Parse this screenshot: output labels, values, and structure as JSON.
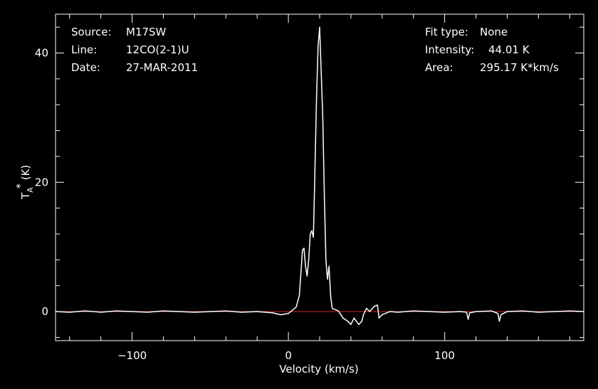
{
  "header": {
    "source_label": "Source:",
    "source_value": "M17SW",
    "line_label": "Line:",
    "line_value": "12CO(2-1)U",
    "date_label": "Date:",
    "date_value": "27-MAR-2011",
    "fit_type_label": "Fit type:",
    "fit_type_value": "None",
    "intensity_label": "Intensity:",
    "intensity_value": "44.01 K",
    "area_label": "Area:",
    "area_value": "295.17 K*km/s"
  },
  "chart_data": {
    "type": "line",
    "xlabel": "Velocity (km/s)",
    "ylabel": "T_A* (K)",
    "ylabel_main": "T",
    "ylabel_sub": "A",
    "ylabel_sup": "*",
    "ylabel_unit": "(K)",
    "xlim": [
      -149,
      189
    ],
    "ylim": [
      -4.5,
      46
    ],
    "x_ticks": [
      -100,
      0,
      100
    ],
    "x_tick_labels": [
      "−100",
      "0",
      "100"
    ],
    "y_ticks": [
      0,
      20,
      40
    ],
    "y_tick_labels": [
      "0",
      "20",
      "40"
    ],
    "grid": false,
    "background_color": "#000000",
    "series_color": "#ffffff",
    "baseline": {
      "y": 0,
      "color": "#cc2222"
    },
    "series": [
      {
        "x": [
          -149,
          -140,
          -130,
          -120,
          -110,
          -100,
          -90,
          -80,
          -70,
          -60,
          -50,
          -40,
          -30,
          -20,
          -10,
          -5,
          0,
          3,
          5,
          7,
          8,
          9,
          10,
          11,
          12,
          13,
          14,
          15,
          16,
          17,
          18,
          19,
          20,
          21,
          22,
          23,
          24,
          25,
          26,
          27,
          28,
          30,
          32,
          35,
          38,
          40,
          42,
          45,
          47,
          48,
          50,
          52,
          55,
          57,
          58,
          60,
          65,
          70,
          80,
          90,
          100,
          110,
          114,
          115,
          116,
          120,
          130,
          134,
          135,
          136,
          140,
          150,
          160,
          170,
          180,
          189
        ],
        "y": [
          0,
          -0.1,
          0.1,
          -0.1,
          0.1,
          0,
          -0.1,
          0.1,
          0,
          -0.1,
          0,
          0.1,
          -0.1,
          0,
          -0.2,
          -0.5,
          -0.3,
          0.3,
          0.7,
          2.5,
          6,
          9.5,
          9.8,
          7,
          5.5,
          8,
          12,
          12.5,
          11.5,
          22,
          33,
          41,
          44,
          37,
          30,
          18,
          8,
          5,
          7,
          2.5,
          0.5,
          0.3,
          0.1,
          -1,
          -1.5,
          -2,
          -1,
          -2,
          -1.5,
          -0.5,
          0.5,
          0,
          0.8,
          1,
          -1,
          -0.5,
          0,
          -0.1,
          0.1,
          0,
          -0.1,
          0,
          -0.1,
          -1.2,
          -0.2,
          0,
          0.1,
          -0.3,
          -1.5,
          -0.5,
          0,
          0.1,
          -0.1,
          0,
          0.1,
          0
        ]
      }
    ]
  }
}
